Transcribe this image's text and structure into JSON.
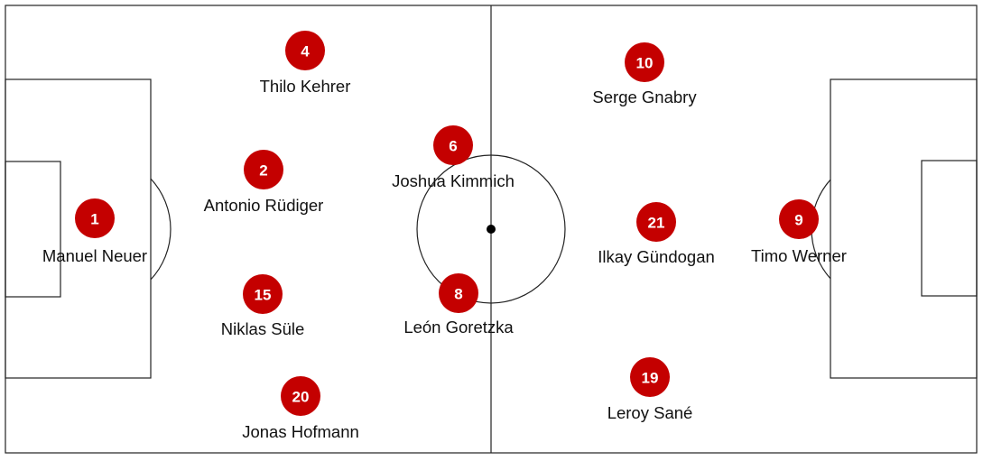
{
  "marker_color": "#c40000",
  "players": [
    {
      "number": "4",
      "name": "Thilo Kehrer"
    },
    {
      "number": "10",
      "name": "Serge Gnabry"
    },
    {
      "number": "6",
      "name": "Joshua Kimmich"
    },
    {
      "number": "2",
      "name": "Antonio Rüdiger"
    },
    {
      "number": "1",
      "name": "Manuel Neuer"
    },
    {
      "number": "21",
      "name": "Ilkay Gündogan"
    },
    {
      "number": "9",
      "name": "Timo Werner"
    },
    {
      "number": "15",
      "name": "Niklas Süle"
    },
    {
      "number": "8",
      "name": "León Goretzka"
    },
    {
      "number": "20",
      "name": "Jonas Hofmann"
    },
    {
      "number": "19",
      "name": "Leroy Sané"
    }
  ]
}
